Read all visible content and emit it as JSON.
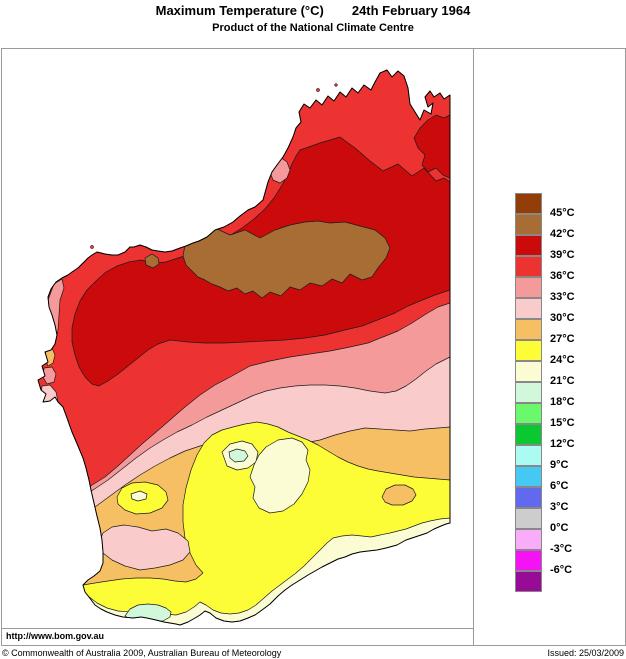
{
  "title": {
    "main": "Maximum Temperature (°C)",
    "date": "24th February 1964",
    "subtitle": "Product of the National Climate Centre"
  },
  "footer": {
    "url": "http://www.bom.gov.au",
    "copyright": "© Commonwealth of Australia 2009, Australian Bureau of Meteorology",
    "issued": "Issued: 25/03/2009"
  },
  "legend": {
    "labels": [
      "45°C",
      "42°C",
      "39°C",
      "36°C",
      "33°C",
      "30°C",
      "27°C",
      "24°C",
      "21°C",
      "18°C",
      "15°C",
      "12°C",
      "9°C",
      "6°C",
      "3°C",
      "0°C",
      "-3°C",
      "-6°C"
    ],
    "colors": [
      "#933D08",
      "#A86C35",
      "#CB0B0B",
      "#ED3232",
      "#F59A9A",
      "#F9CBCB",
      "#F7BF64",
      "#FDFD37",
      "#FCFCD4",
      "#D2F8DC",
      "#6CF86C",
      "#0BC832",
      "#ABFBF3",
      "#46C8F5",
      "#6169EF",
      "#CDCDCD",
      "#F9ADF9",
      "#F513F5",
      "#970B97"
    ]
  },
  "chart_data": {
    "type": "heatmap",
    "title": "Maximum Temperature (°C) — 24th February 1964 (Western Australia)",
    "legend_position": "right",
    "scale_boundaries_c": [
      45,
      42,
      39,
      36,
      33,
      30,
      27,
      24,
      21,
      18,
      15,
      12,
      9,
      6,
      3,
      0,
      -3,
      -6
    ],
    "bands_shown_on_map": [
      {
        "range": "42-45°C",
        "color": "#A86C35",
        "location": "central-north interior blob"
      },
      {
        "range": "39-42°C",
        "color": "#CB0B0B",
        "location": "broad northern interior and Kimberley interior, tongue down west coast"
      },
      {
        "range": "36-39°C",
        "color": "#ED3232",
        "location": "north and west coastal band, north-east corner"
      },
      {
        "range": "33-36°C",
        "color": "#F59A9A",
        "location": "band across mid-state trending south-west"
      },
      {
        "range": "30-33°C",
        "color": "#F9CBCB",
        "location": "band south of 33-36 band plus south-west inland blob"
      },
      {
        "range": "27-30°C",
        "color": "#F7BF64",
        "location": "band across southern interior and lower west coast"
      },
      {
        "range": "24-27°C",
        "color": "#FDFD37",
        "location": "large south-eastern area and south-west coastal strip"
      },
      {
        "range": "21-24°C",
        "color": "#FCFCD4",
        "location": "south coast strip and interior pockets"
      },
      {
        "range": "18-21°C",
        "color": "#D2F8DC",
        "location": "small south-coast patch near Albany and tiny interior spots"
      }
    ]
  }
}
